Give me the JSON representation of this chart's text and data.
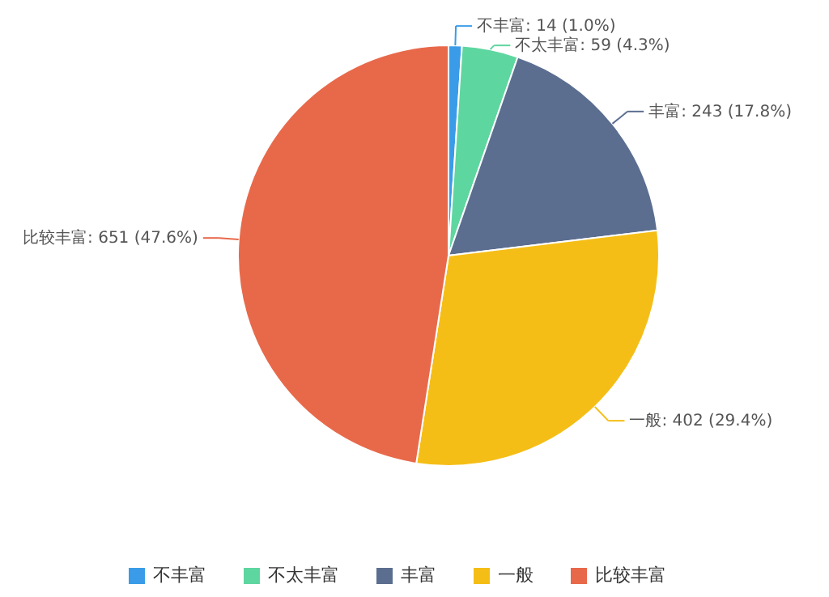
{
  "chart_data": {
    "type": "pie",
    "categories": [
      "不丰富",
      "不太丰富",
      "丰富",
      "一般",
      "比较丰富"
    ],
    "values": [
      14,
      59,
      243,
      402,
      651
    ],
    "colors": [
      "#3a9ce8",
      "#5ed6a0",
      "#5b6e90",
      "#f5be17",
      "#e8694a"
    ],
    "value_labels": [
      ": 14 (1.0%)",
      ": 59 (4.3%)",
      ": 243 (17.8%)",
      ": 402 (29.4%)",
      ": 651 (47.6%)"
    ],
    "legend": "bottom"
  }
}
